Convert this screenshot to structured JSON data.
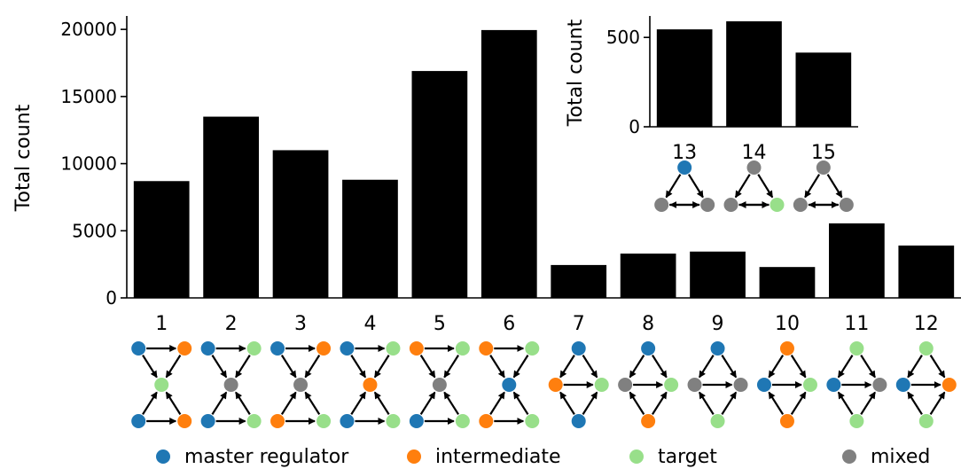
{
  "chart_data": [
    {
      "type": "bar",
      "categories": [
        "1",
        "2",
        "3",
        "4",
        "5",
        "6",
        "7",
        "8",
        "9",
        "10",
        "11",
        "12"
      ],
      "values": [
        8700,
        13500,
        11000,
        8800,
        16900,
        19950,
        2450,
        3300,
        3450,
        2300,
        5550,
        3900
      ],
      "ylabel": "Total count",
      "ylim": [
        0,
        21000
      ],
      "yticks": [
        "0",
        "5000",
        "10000",
        "15000",
        "20000"
      ],
      "bar_color": "#000000",
      "grid": false
    },
    {
      "type": "bar",
      "categories": [
        "13",
        "14",
        "15"
      ],
      "values": [
        545,
        590,
        415
      ],
      "ylabel": "Total count",
      "ylim": [
        0,
        620
      ],
      "yticks": [
        "0",
        "500"
      ],
      "bar_color": "#000000",
      "grid": false
    }
  ],
  "node_colors": {
    "master regulator": "#1f77b4",
    "intermediate": "#ff7f0e",
    "target": "#98df8a",
    "mixed": "#808080"
  },
  "motifs": {
    "1": {
      "layout": "hourglass",
      "nodes": [
        "master regulator",
        "intermediate",
        "target",
        "master regulator",
        "intermediate"
      ]
    },
    "2": {
      "layout": "hourglass",
      "nodes": [
        "master regulator",
        "target",
        "mixed",
        "master regulator",
        "target"
      ]
    },
    "3": {
      "layout": "hourglass",
      "nodes": [
        "master regulator",
        "intermediate",
        "mixed",
        "intermediate",
        "target"
      ]
    },
    "4": {
      "layout": "hourglass",
      "nodes": [
        "master regulator",
        "target",
        "intermediate",
        "master regulator",
        "target"
      ]
    },
    "5": {
      "layout": "hourglass",
      "nodes": [
        "intermediate",
        "target",
        "mixed",
        "master regulator",
        "target"
      ]
    },
    "6": {
      "layout": "hourglass",
      "nodes": [
        "intermediate",
        "target",
        "master regulator",
        "intermediate",
        "target"
      ]
    },
    "7": {
      "layout": "diamond",
      "nodes": [
        "master regulator",
        "intermediate",
        "target",
        "master regulator"
      ]
    },
    "8": {
      "layout": "diamond",
      "nodes": [
        "master regulator",
        "mixed",
        "target",
        "intermediate"
      ]
    },
    "9": {
      "layout": "diamond",
      "nodes": [
        "master regulator",
        "mixed",
        "mixed",
        "target"
      ]
    },
    "10": {
      "layout": "diamond",
      "nodes": [
        "intermediate",
        "master regulator",
        "target",
        "intermediate"
      ]
    },
    "11": {
      "layout": "diamond",
      "nodes": [
        "target",
        "master regulator",
        "mixed",
        "target"
      ]
    },
    "12": {
      "layout": "diamond",
      "nodes": [
        "target",
        "master regulator",
        "intermediate",
        "target"
      ]
    },
    "13": {
      "layout": "triangle",
      "nodes": [
        "master regulator",
        "mixed",
        "mixed"
      ]
    },
    "14": {
      "layout": "triangle",
      "nodes": [
        "mixed",
        "mixed",
        "target"
      ]
    },
    "15": {
      "layout": "triangle",
      "nodes": [
        "mixed",
        "mixed",
        "mixed"
      ]
    }
  },
  "legend": [
    {
      "label": "master regulator",
      "color": "#1f77b4"
    },
    {
      "label": "intermediate",
      "color": "#ff7f0e"
    },
    {
      "label": "target",
      "color": "#98df8a"
    },
    {
      "label": "mixed",
      "color": "#808080"
    }
  ]
}
